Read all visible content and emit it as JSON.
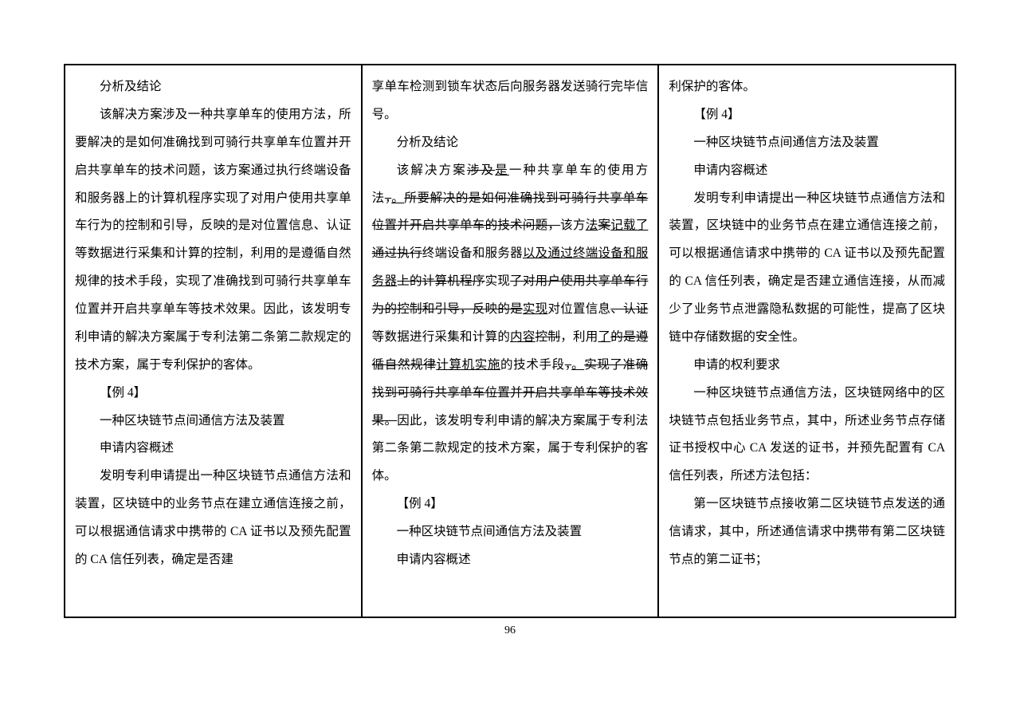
{
  "page_number": "96",
  "column1": {
    "p1": "分析及结论",
    "p2": "该解决方案涉及一种共享单车的使用方法，所要解决的是如何准确找到可骑行共享单车位置并开启共享单车的技术问题，该方案通过执行终端设备和服务器上的计算机程序实现了对用户使用共享单车行为的控制和引导，反映的是对位置信息、认证等数据进行采集和计算的控制，利用的是遵循自然规律的技术手段，实现了准确找到可骑行共享单车位置并开启共享单车等技术效果。因此，该发明专利申请的解决方案属于专利法第二条第二款规定的技术方案，属于专利保护的客体。",
    "p3": "【例 4】",
    "p4": "一种区块链节点间通信方法及装置",
    "p5": "申请内容概述",
    "p6": "发明专利申请提出一种区块链节点通信方法和装置，区块链中的业务节点在建立通信连接之前，可以根据通信请求中携带的 CA 证书以及预先配置的 CA 信任列表，确定是否建"
  },
  "column2": {
    "p1": "享单车检测到锁车状态后向服务器发送骑行完毕信号。",
    "p2": "分析及结论",
    "s1": "该解决方案",
    "s2": "涉及",
    "s3": "是",
    "s4": "一种共享单车的使用方法",
    "s5": "，",
    "s6": "。",
    "s7": "所要解决的是如何准确找到可骑行共享单车位置并开启共享单车的技术问题，",
    "s8": "该方",
    "s9": "法",
    "s10": "案",
    "s11": "记载了",
    "s12": "通过执行",
    "s13": "终端设备和服务器",
    "s14": "以及通过终端设备和服务器",
    "s15": "上的计算机程序",
    "s16": "实现",
    "s17": "了对用户使用共享单车行为的控制和引导，反映的是",
    "s18": "实现",
    "s19": "对位置信息",
    "s20": "、认证",
    "s21": "等数据进行采集和计算的",
    "s22": "内容",
    "s23": "控制",
    "s24": "，利用",
    "s25": "了",
    "s26": "的是遵循自然规律",
    "s27": "计算机实施",
    "s28": "的技术手段",
    "s29": "，",
    "s30": "。",
    "s31": "实现了准确找到可骑行共享单车位置并开启共享单车等技术效果。",
    "s32": "因此，该发明专利申请的解决方案属于专利法第二条第二款规定的技术方案，属于专利保护的客体。",
    "p4": "【例 4】",
    "p5": "一种区块链节点间通信方法及装置",
    "p6": "申请内容概述"
  },
  "column3": {
    "p1": "利保护的客体。",
    "p2": "【例 4】",
    "p3": "一种区块链节点间通信方法及装置",
    "p4": "申请内容概述",
    "p5": "发明专利申请提出一种区块链节点通信方法和装置，区块链中的业务节点在建立通信连接之前，可以根据通信请求中携带的 CA 证书以及预先配置的 CA 信任列表，确定是否建立通信连接，从而减少了业务节点泄露隐私数据的可能性，提高了区块链中存储数据的安全性。",
    "p6": "申请的权利要求",
    "p7": "一种区块链节点通信方法，区块链网络中的区块链节点包括业务节点，其中，所述业务节点存储证书授权中心 CA 发送的证书，并预先配置有 CA 信任列表，所述方法包括：",
    "p8": "第一区块链节点接收第二区块链节点发送的通信请求，其中，所述通信请求中携带有第二区块链节点的第二证书；"
  }
}
